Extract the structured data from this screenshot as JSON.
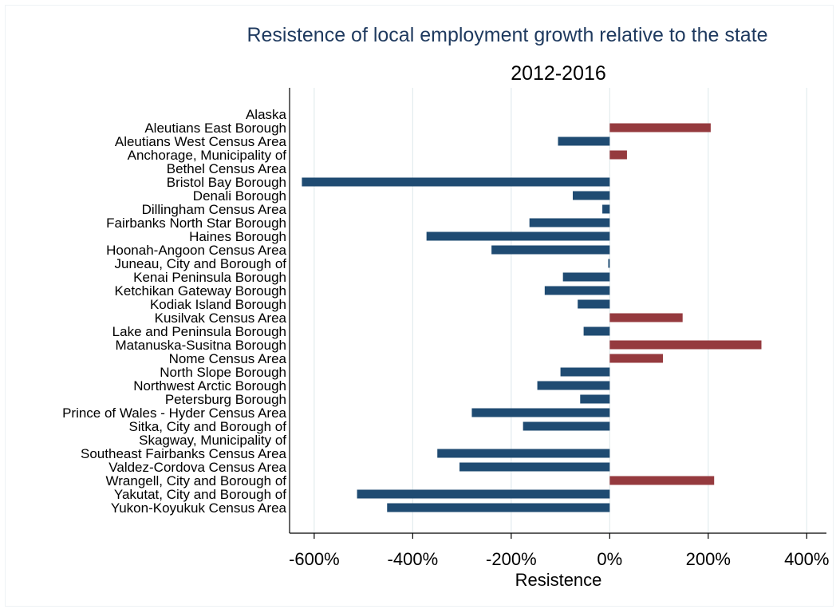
{
  "chart_data": {
    "type": "bar",
    "orientation": "horizontal",
    "title": "Resistence of local employment growth relative to the state",
    "subtitle": "2012-2016",
    "xlabel": "Resistence",
    "ylabel": "",
    "xlim": [
      -650,
      440
    ],
    "xticks": [
      -600,
      -400,
      -200,
      0,
      200,
      400
    ],
    "xtick_labels": [
      "-600%",
      "-400%",
      "-200%",
      "0%",
      "200%",
      "400%"
    ],
    "grid": true,
    "colors": {
      "positive": "#953a3e",
      "negative": "#1f4b72",
      "grid": "#e3ecee",
      "title": "#1f3a5f"
    },
    "categories": [
      "Alaska",
      "Aleutians East Borough",
      "Aleutians West Census Area",
      "Anchorage, Municipality of",
      "Bethel Census Area",
      "Bristol Bay Borough",
      "Denali Borough",
      "Dillingham Census Area",
      "Fairbanks North Star Borough",
      "Haines Borough",
      "Hoonah-Angoon Census Area",
      "Juneau, City and Borough of",
      "Kenai Peninsula Borough",
      "Ketchikan Gateway Borough",
      "Kodiak Island Borough",
      "Kusilvak Census Area",
      "Lake and Peninsula Borough",
      "Matanuska-Susitna Borough",
      "Nome Census Area",
      "North Slope Borough",
      "Northwest Arctic Borough",
      "Petersburg Borough",
      "Prince of Wales - Hyder Census Area",
      "Sitka, City and Borough of",
      "Skagway, Municipality of",
      "Southeast Fairbanks Census Area",
      "Valdez-Cordova Census Area",
      "Wrangell, City and Borough of",
      "Yakutat, City and Borough of",
      "Yukon-Koyukuk Census Area"
    ],
    "values": [
      0,
      205,
      -105,
      35,
      0,
      -625,
      -75,
      -15,
      -163,
      -372,
      -240,
      -3,
      -95,
      -132,
      -65,
      148,
      -53,
      308,
      108,
      -100,
      -147,
      -60,
      -280,
      -176,
      0,
      -350,
      -305,
      212,
      -513,
      -452
    ]
  }
}
